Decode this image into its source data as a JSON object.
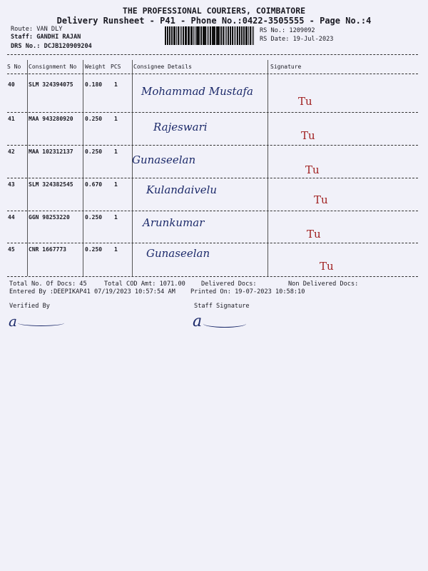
{
  "header": {
    "company": "THE PROFESSIONAL COURIERS, COIMBATORE",
    "subtitle": "Delivery Runsheet - P41 - Phone No.:0422-3505555 - Page No.:4",
    "route": "Route: VAN DLY",
    "staff": "Staff: GANDHI RAJAN",
    "drs": "DRS No.: DCJB120909204",
    "rs_no": "RS No.: 1209092",
    "rs_date": "RS Date: 19-Jul-2023"
  },
  "table": {
    "columns": [
      "S No",
      "Consignment No",
      "Weight",
      "PCS",
      "Consignee Details",
      "Signature"
    ],
    "rows": [
      {
        "sno": "40",
        "consignment": "SLM 324394075",
        "weight": "0.180",
        "pcs": "1",
        "consignee": "Mohammad Mustafa",
        "signature": "Tu"
      },
      {
        "sno": "41",
        "consignment": "MAA 943280920",
        "weight": "0.250",
        "pcs": "1",
        "consignee": "Rajeswari",
        "signature": "Tu"
      },
      {
        "sno": "42",
        "consignment": "MAA 102312137",
        "weight": "0.250",
        "pcs": "1",
        "consignee": "Gunaseelan",
        "signature": "Tu"
      },
      {
        "sno": "43",
        "consignment": "SLM 324382545",
        "weight": "0.670",
        "pcs": "1",
        "consignee": "Kulandaivelu",
        "signature": "Tu"
      },
      {
        "sno": "44",
        "consignment": "GGN 98253220",
        "weight": "0.250",
        "pcs": "1",
        "consignee": "Arunkumar",
        "signature": "Tu"
      },
      {
        "sno": "45",
        "consignment": "CNR 1667773",
        "weight": "0.250",
        "pcs": "1",
        "consignee": "Gunaseelan",
        "signature": "Tu"
      }
    ]
  },
  "footer": {
    "total_docs": "Total No. Of Docs:  45",
    "total_cod": "Total COD Amt: 1071.00",
    "delivered": "Delivered Docs:",
    "non_delivered": "Non Delivered Docs:",
    "entered_by": "Entered By :DEEPIKAP41 07/19/2023 10:57:54 AM",
    "printed_on": "Printed On: 19-07-2023 10:58:10",
    "verified_by": "Verified By",
    "staff_signature": "Staff Signature"
  }
}
